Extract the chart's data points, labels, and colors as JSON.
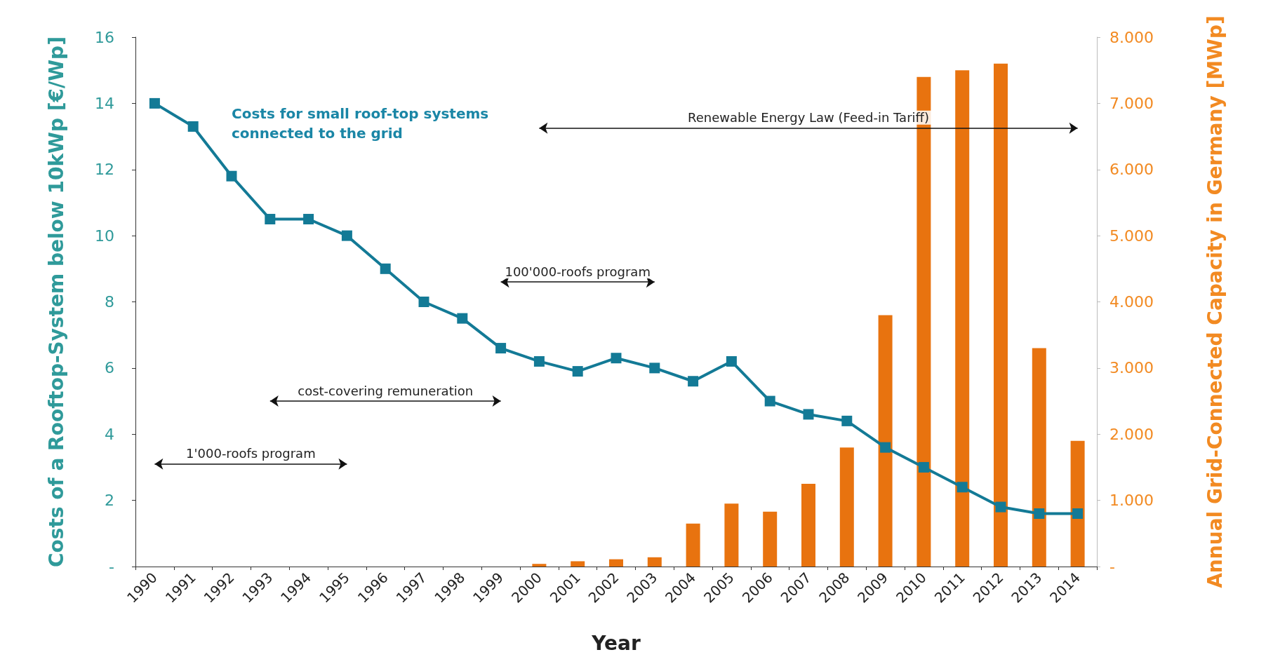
{
  "chart_data": {
    "type": "bar",
    "xlabel": "Year",
    "ylabel": "Costs of a Rooftop-System below 10kWp [€/Wp]",
    "y2label": "Annual Grid-Connected Capacity in Germany [MWp]",
    "categories": [
      "1990",
      "1991",
      "1992",
      "1993",
      "1994",
      "1995",
      "1996",
      "1997",
      "1998",
      "1999",
      "2000",
      "2001",
      "2002",
      "2003",
      "2004",
      "2005",
      "2006",
      "2007",
      "2008",
      "2009",
      "2010",
      "2011",
      "2012",
      "2013",
      "2014"
    ],
    "series": [
      {
        "type": "line",
        "color": "#137a96",
        "marker": "square",
        "values": [
          14.0,
          13.3,
          11.8,
          10.5,
          10.5,
          10.0,
          9.0,
          8.0,
          7.5,
          6.6,
          6.2,
          5.9,
          6.3,
          6.0,
          5.6,
          6.2,
          5.0,
          4.6,
          4.4,
          3.6,
          3.0,
          2.4,
          1.8,
          1.6,
          1.6
        ]
      },
      {
        "axis": "y2",
        "color": "#e8730f",
        "values": [
          null,
          null,
          null,
          null,
          null,
          null,
          null,
          null,
          null,
          null,
          40,
          80,
          110,
          140,
          650,
          950,
          830,
          1250,
          1800,
          3800,
          7400,
          7500,
          7600,
          3300,
          1900
        ]
      }
    ],
    "ylim": [
      0,
      16
    ],
    "yticks": [
      {
        "value": 0,
        "label": "-"
      },
      2,
      4,
      6,
      8,
      10,
      12,
      14,
      16
    ],
    "y2lim": [
      0,
      8000
    ],
    "y2ticks": [
      {
        "value": 0,
        "label": "-"
      },
      {
        "value": 1000,
        "label": "1.000"
      },
      {
        "value": 2000,
        "label": "2.000"
      },
      {
        "value": 3000,
        "label": "3.000"
      },
      {
        "value": 4000,
        "label": "4.000"
      },
      {
        "value": 5000,
        "label": "5.000"
      },
      {
        "value": 6000,
        "label": "6.000"
      },
      {
        "value": 7000,
        "label": "7.000"
      },
      {
        "value": 8000,
        "label": "8.000"
      }
    ],
    "annotations": [
      "Costs for small roof-top systems connected to the grid",
      "Renewable Energy Law (Feed-in Tariff)",
      "100'000-roofs program",
      "cost-covering remuneration",
      "1'000-roofs program"
    ],
    "grid": false
  }
}
